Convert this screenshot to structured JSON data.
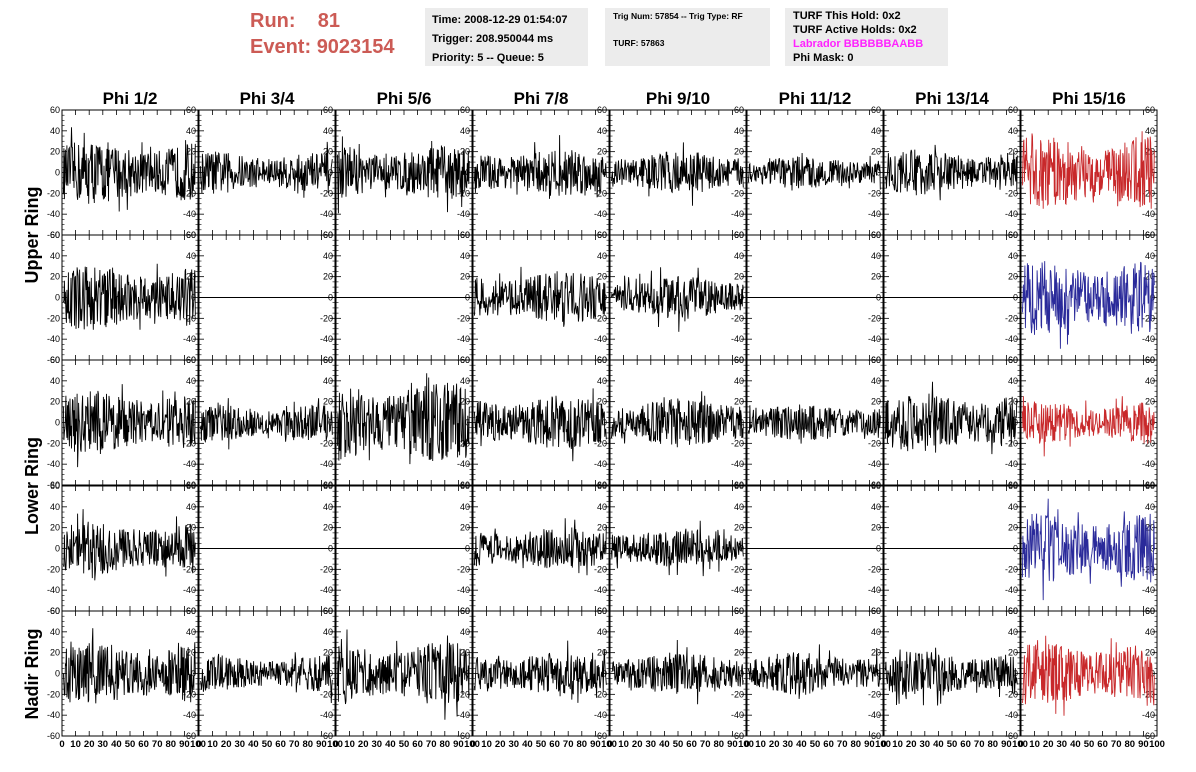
{
  "header": {
    "run_label": "Run:",
    "run_value": "81",
    "event_label": "Event:",
    "event_value": "9023154"
  },
  "info_time": {
    "time": "Time: 2008-12-29 01:54:07",
    "trigger": "Trigger: 208.950044 ms",
    "priority": "Priority: 5 -- Queue: 5"
  },
  "info_trig": {
    "trig": "Trig Num: 57854 -- Trig Type: RF",
    "turf": "TURF: 57863"
  },
  "info_turf": {
    "hold": "TURF This Hold: 0x2",
    "active": "TURF Active Holds: 0x2",
    "labrador": "Labrador BBBBBBAABB",
    "phimask": "Phi Mask: 0"
  },
  "columns": [
    "Phi 1/2",
    "Phi 3/4",
    "Phi 5/6",
    "Phi 7/8",
    "Phi 9/10",
    "Phi 11/12",
    "Phi 13/14",
    "Phi 15/16"
  ],
  "ring_labels": [
    "Upper Ring",
    "Lower Ring",
    "Nadir Ring"
  ],
  "y_ticks": [
    "60",
    "40",
    "20",
    "0",
    "-20",
    "-40",
    "-60"
  ],
  "x_ticks": [
    "0",
    "10",
    "20",
    "30",
    "40",
    "50",
    "60",
    "70",
    "80",
    "90",
    "100"
  ],
  "colors": {
    "trace_default": "#000000",
    "trace_red": "#c8282a",
    "trace_blue": "#2a2a9a",
    "run_text": "#cc5b55",
    "labrador_text": "#ff22ff",
    "info_bg": "#ececec"
  },
  "chart_data": {
    "type": "line",
    "xlim": [
      0,
      100
    ],
    "ylim": [
      -60,
      60
    ],
    "panels": [
      {
        "row": 0,
        "col": 0,
        "amp": 24,
        "flat": false,
        "color": "black"
      },
      {
        "row": 0,
        "col": 1,
        "amp": 16,
        "flat": false,
        "color": "black"
      },
      {
        "row": 0,
        "col": 2,
        "amp": 20,
        "flat": false,
        "color": "black"
      },
      {
        "row": 0,
        "col": 3,
        "amp": 18,
        "flat": false,
        "color": "black"
      },
      {
        "row": 0,
        "col": 4,
        "amp": 16,
        "flat": false,
        "color": "black"
      },
      {
        "row": 0,
        "col": 5,
        "amp": 12,
        "flat": false,
        "color": "black"
      },
      {
        "row": 0,
        "col": 6,
        "amp": 17,
        "flat": false,
        "color": "black"
      },
      {
        "row": 0,
        "col": 7,
        "amp": 28,
        "flat": false,
        "color": "red"
      },
      {
        "row": 1,
        "col": 0,
        "amp": 24,
        "flat": false,
        "color": "black"
      },
      {
        "row": 1,
        "col": 1,
        "amp": 0,
        "flat": true,
        "color": "black"
      },
      {
        "row": 1,
        "col": 2,
        "amp": 0,
        "flat": true,
        "color": "black"
      },
      {
        "row": 1,
        "col": 3,
        "amp": 20,
        "flat": false,
        "color": "black"
      },
      {
        "row": 1,
        "col": 4,
        "amp": 16,
        "flat": false,
        "color": "black"
      },
      {
        "row": 1,
        "col": 5,
        "amp": 0,
        "flat": true,
        "color": "black"
      },
      {
        "row": 1,
        "col": 6,
        "amp": 0,
        "flat": true,
        "color": "black"
      },
      {
        "row": 1,
        "col": 7,
        "amp": 28,
        "flat": false,
        "color": "blue"
      },
      {
        "row": 2,
        "col": 0,
        "amp": 24,
        "flat": false,
        "color": "black"
      },
      {
        "row": 2,
        "col": 1,
        "amp": 14,
        "flat": false,
        "color": "black"
      },
      {
        "row": 2,
        "col": 2,
        "amp": 30,
        "flat": false,
        "color": "black"
      },
      {
        "row": 2,
        "col": 3,
        "amp": 20,
        "flat": false,
        "color": "black"
      },
      {
        "row": 2,
        "col": 4,
        "amp": 18,
        "flat": false,
        "color": "black"
      },
      {
        "row": 2,
        "col": 5,
        "amp": 14,
        "flat": false,
        "color": "black"
      },
      {
        "row": 2,
        "col": 6,
        "amp": 22,
        "flat": false,
        "color": "black"
      },
      {
        "row": 2,
        "col": 7,
        "amp": 16,
        "flat": false,
        "color": "red"
      },
      {
        "row": 3,
        "col": 0,
        "amp": 20,
        "flat": false,
        "color": "black"
      },
      {
        "row": 3,
        "col": 1,
        "amp": 0,
        "flat": true,
        "color": "black"
      },
      {
        "row": 3,
        "col": 2,
        "amp": 0,
        "flat": true,
        "color": "black"
      },
      {
        "row": 3,
        "col": 3,
        "amp": 16,
        "flat": false,
        "color": "black"
      },
      {
        "row": 3,
        "col": 4,
        "amp": 15,
        "flat": false,
        "color": "black"
      },
      {
        "row": 3,
        "col": 5,
        "amp": 0,
        "flat": true,
        "color": "black"
      },
      {
        "row": 3,
        "col": 6,
        "amp": 0,
        "flat": true,
        "color": "black"
      },
      {
        "row": 3,
        "col": 7,
        "amp": 26,
        "flat": false,
        "color": "blue"
      },
      {
        "row": 4,
        "col": 0,
        "amp": 24,
        "flat": false,
        "color": "black"
      },
      {
        "row": 4,
        "col": 1,
        "amp": 14,
        "flat": false,
        "color": "black"
      },
      {
        "row": 4,
        "col": 2,
        "amp": 24,
        "flat": false,
        "color": "black"
      },
      {
        "row": 4,
        "col": 3,
        "amp": 16,
        "flat": false,
        "color": "black"
      },
      {
        "row": 4,
        "col": 4,
        "amp": 16,
        "flat": false,
        "color": "black"
      },
      {
        "row": 4,
        "col": 5,
        "amp": 16,
        "flat": false,
        "color": "black"
      },
      {
        "row": 4,
        "col": 6,
        "amp": 17,
        "flat": false,
        "color": "black"
      },
      {
        "row": 4,
        "col": 7,
        "amp": 24,
        "flat": false,
        "color": "red"
      }
    ]
  }
}
